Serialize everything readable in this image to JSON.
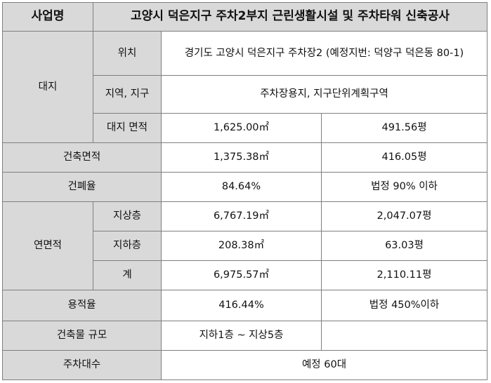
{
  "table": {
    "header": {
      "label": "사업명",
      "value": "고양시 덕은지구 주차2부지 근린생활시설 및 주차타워 신축공사"
    },
    "site": {
      "label": "대지",
      "location_label": "위치",
      "location_value": "경기도 고양시 덕은지구 주차장2 (예정지번: 덕양구 덕은동 80-1)",
      "zone_label": "지역, 지구",
      "zone_value": "주차장용지, 지구단위계획구역",
      "area_label": "대지 면적",
      "area_sqm": "1,625.00㎡",
      "area_pyeong": "491.56평"
    },
    "building_area": {
      "label": "건축면적",
      "sqm": "1,375.38㎡",
      "pyeong": "416.05평"
    },
    "coverage": {
      "label": "건폐율",
      "value": "84.64%",
      "legal": "법정 90% 이하"
    },
    "floor_area": {
      "label": "연면적",
      "above_label": "지상층",
      "above_sqm": "6,767.19㎡",
      "above_pyeong": "2,047.07평",
      "below_label": "지하층",
      "below_sqm": "208.38㎡",
      "below_pyeong": "63.03평",
      "total_label": "계",
      "total_sqm": "6,975.57㎡",
      "total_pyeong": "2,110.11평"
    },
    "far": {
      "label": "용적율",
      "value": "416.44%",
      "legal": "법정 450%이하"
    },
    "scale": {
      "label": "건축물 규모",
      "value": "지하1층 ~ 지상5층"
    },
    "parking": {
      "label": "주차대수",
      "value": "예정 60대"
    }
  }
}
